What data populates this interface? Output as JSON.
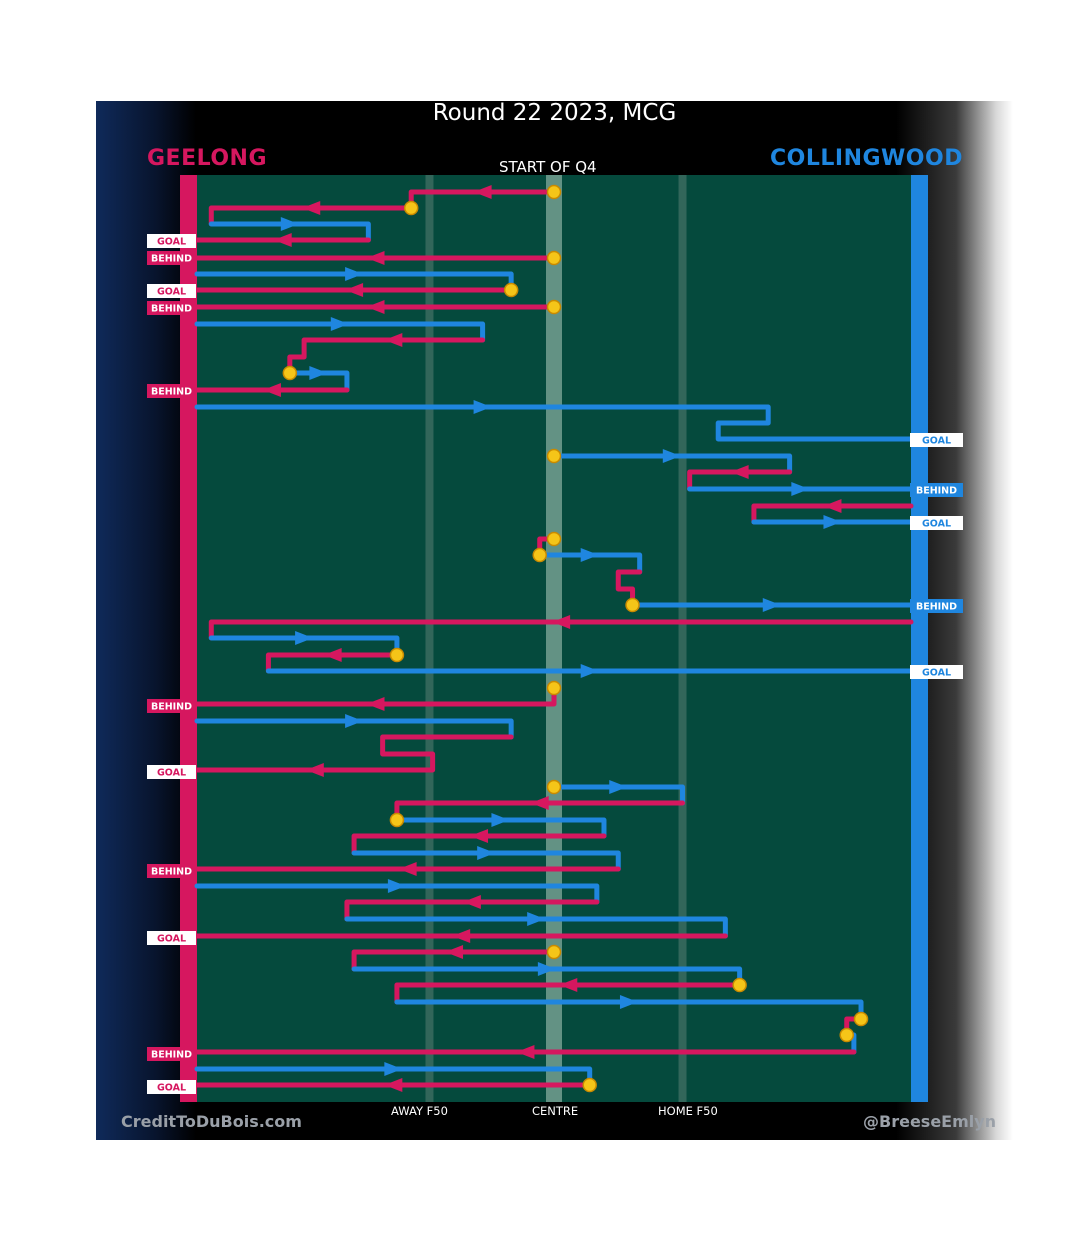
{
  "title": "Round 22 2023, MCG",
  "teams": {
    "home": "GEELONG",
    "away": "COLLINGWOOD"
  },
  "period_label": "START OF Q4",
  "x_axis": {
    "away_f50": "AWAY F50",
    "centre": "CENTRE",
    "home_f50": "HOME F50"
  },
  "credits": {
    "left": "CreditToDuBois.com",
    "right": "@BreeseEmlyn"
  },
  "colors": {
    "geelong": "#d6175f",
    "collingwood": "#1f86df",
    "field": "#054a3d",
    "turnover": "#f5c518"
  },
  "chart_data": {
    "type": "chain-flow",
    "x_scale": "field position, 0 = Geelong goal, 100 = Collingwood goal, 50 = centre",
    "chains": [
      {
        "team": "geelong",
        "start": 50,
        "corners": [
          [
            50,
            192
          ],
          [
            30,
            192
          ],
          [
            30,
            208
          ]
        ],
        "end": 30,
        "turnover_start": true,
        "turnover_end": true
      },
      {
        "team": "geelong",
        "corners": [
          [
            30,
            208
          ],
          [
            2,
            208
          ],
          [
            2,
            224
          ]
        ]
      },
      {
        "team": "collingwood",
        "corners": [
          [
            2,
            224
          ],
          [
            24,
            224
          ],
          [
            24,
            240
          ]
        ]
      },
      {
        "team": "geelong",
        "corners": [
          [
            24,
            240
          ],
          [
            0,
            240
          ]
        ],
        "result": "GOAL"
      },
      {
        "team": "geelong",
        "start": 50,
        "corners": [
          [
            50,
            258
          ],
          [
            0,
            258
          ]
        ],
        "turnover_start": true,
        "result": "BEHIND"
      },
      {
        "team": "collingwood",
        "corners": [
          [
            0,
            274
          ],
          [
            44,
            274
          ],
          [
            44,
            290
          ]
        ],
        "turnover_end": true
      },
      {
        "team": "geelong",
        "corners": [
          [
            44,
            290
          ],
          [
            0,
            290
          ]
        ],
        "result": "GOAL"
      },
      {
        "team": "geelong",
        "start": 50,
        "corners": [
          [
            50,
            307
          ],
          [
            0,
            307
          ]
        ],
        "turnover_start": true,
        "result": "BEHIND"
      },
      {
        "team": "collingwood",
        "corners": [
          [
            0,
            324
          ],
          [
            40,
            324
          ],
          [
            40,
            340
          ]
        ]
      },
      {
        "team": "geelong",
        "corners": [
          [
            40,
            340
          ],
          [
            15,
            340
          ],
          [
            15,
            357
          ],
          [
            13,
            357
          ],
          [
            13,
            373
          ]
        ],
        "turnover_end": true
      },
      {
        "team": "collingwood",
        "corners": [
          [
            13,
            373
          ],
          [
            21,
            373
          ],
          [
            21,
            390
          ]
        ]
      },
      {
        "team": "geelong",
        "corners": [
          [
            21,
            390
          ],
          [
            0,
            390
          ]
        ],
        "result": "BEHIND"
      },
      {
        "team": "collingwood",
        "corners": [
          [
            0,
            407
          ],
          [
            80,
            407
          ],
          [
            80,
            423
          ],
          [
            73,
            423
          ],
          [
            73,
            439
          ],
          [
            100,
            439
          ]
        ],
        "result": "GOAL"
      },
      {
        "team": "collingwood",
        "start": 50,
        "corners": [
          [
            50,
            456
          ],
          [
            83,
            456
          ],
          [
            83,
            472
          ]
        ],
        "turnover_start": true
      },
      {
        "team": "geelong",
        "corners": [
          [
            83,
            472
          ],
          [
            69,
            472
          ],
          [
            69,
            489
          ]
        ]
      },
      {
        "team": "collingwood",
        "corners": [
          [
            69,
            489
          ],
          [
            100,
            489
          ]
        ],
        "result": "BEHIND"
      },
      {
        "team": "geelong",
        "corners": [
          [
            100,
            506
          ],
          [
            78,
            506
          ],
          [
            78,
            522
          ]
        ]
      },
      {
        "team": "collingwood",
        "corners": [
          [
            78,
            522
          ],
          [
            100,
            522
          ]
        ],
        "result": "GOAL"
      },
      {
        "team": "geelong",
        "start": 50,
        "corners": [
          [
            50,
            539
          ],
          [
            48,
            539
          ],
          [
            48,
            555
          ]
        ],
        "turnover_start": true
      },
      {
        "team": "collingwood",
        "corners": [
          [
            48,
            555
          ],
          [
            62,
            555
          ],
          [
            62,
            572
          ]
        ],
        "turnover_start": true
      },
      {
        "team": "geelong",
        "corners": [
          [
            62,
            572
          ],
          [
            59,
            572
          ],
          [
            59,
            589
          ],
          [
            61,
            589
          ],
          [
            61,
            605
          ]
        ],
        "turnover_end": true
      },
      {
        "team": "collingwood",
        "corners": [
          [
            61,
            605
          ],
          [
            100,
            605
          ]
        ],
        "result": "BEHIND"
      },
      {
        "team": "geelong",
        "corners": [
          [
            100,
            622
          ],
          [
            2,
            622
          ],
          [
            2,
            638
          ]
        ]
      },
      {
        "team": "collingwood",
        "corners": [
          [
            2,
            638
          ],
          [
            28,
            638
          ],
          [
            28,
            655
          ]
        ],
        "turnover_end": true
      },
      {
        "team": "geelong",
        "corners": [
          [
            28,
            655
          ],
          [
            10,
            655
          ],
          [
            10,
            671
          ]
        ]
      },
      {
        "team": "collingwood",
        "corners": [
          [
            10,
            671
          ],
          [
            100,
            671
          ]
        ],
        "result": "GOAL"
      },
      {
        "team": "geelong",
        "start": 50,
        "corners": [
          [
            50,
            688
          ],
          [
            50,
            704
          ],
          [
            0,
            704
          ]
        ],
        "turnover_start": true,
        "result": "BEHIND"
      },
      {
        "team": "collingwood",
        "corners": [
          [
            0,
            721
          ],
          [
            44,
            721
          ],
          [
            44,
            737
          ]
        ]
      },
      {
        "team": "geelong",
        "corners": [
          [
            44,
            737
          ],
          [
            26,
            737
          ],
          [
            26,
            754
          ],
          [
            33,
            754
          ],
          [
            33,
            770
          ],
          [
            0,
            770
          ]
        ],
        "result": "GOAL"
      },
      {
        "team": "collingwood",
        "start": 50,
        "corners": [
          [
            50,
            787
          ],
          [
            68,
            787
          ],
          [
            68,
            803
          ]
        ],
        "turnover_start": true
      },
      {
        "team": "geelong",
        "corners": [
          [
            68,
            803
          ],
          [
            28,
            803
          ],
          [
            28,
            820
          ]
        ],
        "turnover_end": true
      },
      {
        "team": "collingwood",
        "corners": [
          [
            28,
            820
          ],
          [
            57,
            820
          ],
          [
            57,
            836
          ]
        ]
      },
      {
        "team": "geelong",
        "corners": [
          [
            57,
            836
          ],
          [
            22,
            836
          ],
          [
            22,
            853
          ]
        ]
      },
      {
        "team": "collingwood",
        "corners": [
          [
            22,
            853
          ],
          [
            59,
            853
          ],
          [
            59,
            869
          ]
        ]
      },
      {
        "team": "geelong",
        "corners": [
          [
            59,
            869
          ],
          [
            0,
            869
          ]
        ],
        "result": "BEHIND"
      },
      {
        "team": "collingwood",
        "corners": [
          [
            0,
            886
          ],
          [
            56,
            886
          ],
          [
            56,
            902
          ]
        ]
      },
      {
        "team": "geelong",
        "corners": [
          [
            56,
            902
          ],
          [
            21,
            902
          ],
          [
            21,
            919
          ]
        ]
      },
      {
        "team": "collingwood",
        "corners": [
          [
            21,
            919
          ],
          [
            74,
            919
          ],
          [
            74,
            936
          ]
        ]
      },
      {
        "team": "geelong",
        "corners": [
          [
            74,
            936
          ],
          [
            0,
            936
          ]
        ],
        "result": "GOAL"
      },
      {
        "team": "geelong",
        "start": 50,
        "corners": [
          [
            50,
            952
          ],
          [
            22,
            952
          ],
          [
            22,
            969
          ]
        ],
        "turnover_start": true
      },
      {
        "team": "collingwood",
        "corners": [
          [
            22,
            969
          ],
          [
            76,
            969
          ],
          [
            76,
            985
          ]
        ],
        "turnover_end": true
      },
      {
        "team": "geelong",
        "corners": [
          [
            76,
            985
          ],
          [
            28,
            985
          ],
          [
            28,
            1002
          ]
        ]
      },
      {
        "team": "collingwood",
        "corners": [
          [
            28,
            1002
          ],
          [
            93,
            1002
          ],
          [
            93,
            1019
          ]
        ],
        "turnover_end": true
      },
      {
        "team": "geelong",
        "corners": [
          [
            93,
            1019
          ],
          [
            91,
            1019
          ],
          [
            91,
            1035
          ]
        ],
        "turnover_end": true
      },
      {
        "team": "collingwood",
        "corners": [
          [
            91,
            1035
          ],
          [
            92,
            1035
          ],
          [
            92,
            1052
          ]
        ]
      },
      {
        "team": "geelong",
        "corners": [
          [
            92,
            1052
          ],
          [
            0,
            1052
          ]
        ],
        "result": "BEHIND"
      },
      {
        "team": "collingwood",
        "corners": [
          [
            0,
            1069
          ],
          [
            55,
            1069
          ],
          [
            55,
            1085
          ]
        ],
        "turnover_end": true
      },
      {
        "team": "geelong",
        "corners": [
          [
            55,
            1085
          ],
          [
            0,
            1085
          ]
        ],
        "result": "GOAL"
      }
    ],
    "result_tags": [
      {
        "team": "geelong",
        "label": "GOAL",
        "y": 241
      },
      {
        "team": "geelong",
        "label": "BEHIND",
        "y": 258
      },
      {
        "team": "geelong",
        "label": "GOAL",
        "y": 291
      },
      {
        "team": "geelong",
        "label": "BEHIND",
        "y": 308
      },
      {
        "team": "geelong",
        "label": "BEHIND",
        "y": 391
      },
      {
        "team": "collingwood",
        "label": "GOAL",
        "y": 440
      },
      {
        "team": "collingwood",
        "label": "BEHIND",
        "y": 490
      },
      {
        "team": "collingwood",
        "label": "GOAL",
        "y": 523
      },
      {
        "team": "collingwood",
        "label": "BEHIND",
        "y": 606
      },
      {
        "team": "collingwood",
        "label": "GOAL",
        "y": 672
      },
      {
        "team": "geelong",
        "label": "BEHIND",
        "y": 706
      },
      {
        "team": "geelong",
        "label": "GOAL",
        "y": 772
      },
      {
        "team": "geelong",
        "label": "BEHIND",
        "y": 871
      },
      {
        "team": "geelong",
        "label": "GOAL",
        "y": 938
      },
      {
        "team": "geelong",
        "label": "BEHIND",
        "y": 1054
      },
      {
        "team": "geelong",
        "label": "GOAL",
        "y": 1087
      }
    ]
  }
}
